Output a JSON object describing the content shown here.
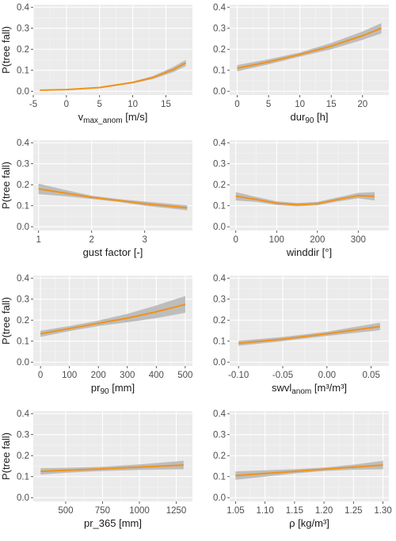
{
  "chart_data": [
    {
      "type": "line",
      "xlabel": "v",
      "xlabel_sub": "max_anom",
      "xlabel_suffix": " [m/s]",
      "ylabel": "P(tree fall)",
      "xlim": [
        -5,
        19
      ],
      "ylim": [
        0,
        0.4
      ],
      "xticks": [
        -5,
        0,
        5,
        10,
        15
      ],
      "xtick_labels": [
        "-5",
        "0",
        "5",
        "10",
        "15"
      ],
      "yticks": [
        0,
        0.1,
        0.2,
        0.3,
        0.4
      ],
      "ytick_labels": [
        "0.0",
        "0.1",
        "0.2",
        "0.3",
        "0.4"
      ],
      "x": [
        -4,
        0,
        5,
        10,
        13,
        16,
        18
      ],
      "y": [
        0.005,
        0.008,
        0.018,
        0.042,
        0.065,
        0.102,
        0.135
      ],
      "lower": [
        0.003,
        0.006,
        0.015,
        0.038,
        0.058,
        0.09,
        0.12
      ],
      "upper": [
        0.007,
        0.01,
        0.021,
        0.046,
        0.072,
        0.114,
        0.15
      ]
    },
    {
      "type": "line",
      "xlabel": "dur",
      "xlabel_sub": "90",
      "xlabel_suffix": " [h]",
      "ylabel": "",
      "xlim": [
        -1.2,
        24.2
      ],
      "ylim": [
        0,
        0.4
      ],
      "xticks": [
        0,
        5,
        10,
        15,
        20
      ],
      "xtick_labels": [
        "0",
        "5",
        "10",
        "15",
        "20"
      ],
      "yticks": [
        0,
        0.1,
        0.2,
        0.3,
        0.4
      ],
      "ytick_labels": [
        "0.0",
        "0.1",
        "0.2",
        "0.3",
        "0.4"
      ],
      "x": [
        0,
        5,
        10,
        15,
        20,
        23
      ],
      "y": [
        0.11,
        0.14,
        0.175,
        0.215,
        0.265,
        0.3
      ],
      "lower": [
        0.095,
        0.128,
        0.165,
        0.2,
        0.245,
        0.275
      ],
      "upper": [
        0.125,
        0.152,
        0.185,
        0.23,
        0.285,
        0.325
      ]
    },
    {
      "type": "line",
      "xlabel": "gust factor [-]",
      "xlabel_sub": "",
      "xlabel_suffix": "",
      "ylabel": "P(tree fall)",
      "xlim": [
        0.9,
        3.9
      ],
      "ylim": [
        0,
        0.4
      ],
      "xticks": [
        1,
        2,
        3
      ],
      "xtick_labels": [
        "1",
        "2",
        "3"
      ],
      "yticks": [
        0,
        0.1,
        0.2,
        0.3,
        0.4
      ],
      "ytick_labels": [
        "0.0",
        "0.1",
        "0.2",
        "0.3",
        "0.4"
      ],
      "x": [
        1,
        1.5,
        2,
        2.5,
        3,
        3.8
      ],
      "y": [
        0.18,
        0.16,
        0.14,
        0.125,
        0.11,
        0.09
      ],
      "lower": [
        0.155,
        0.145,
        0.132,
        0.118,
        0.1,
        0.078
      ],
      "upper": [
        0.205,
        0.175,
        0.148,
        0.132,
        0.12,
        0.102
      ]
    },
    {
      "type": "line",
      "xlabel": "winddir [°]",
      "xlabel_sub": "",
      "xlabel_suffix": "",
      "ylabel": "",
      "xlim": [
        -15,
        375
      ],
      "ylim": [
        0,
        0.4
      ],
      "xticks": [
        0,
        100,
        200,
        300
      ],
      "xtick_labels": [
        "0",
        "100",
        "200",
        "300"
      ],
      "yticks": [
        0,
        0.1,
        0.2,
        0.3,
        0.4
      ],
      "ytick_labels": [
        "0.0",
        "0.1",
        "0.2",
        "0.3",
        "0.4"
      ],
      "x": [
        0,
        50,
        100,
        150,
        200,
        250,
        300,
        340
      ],
      "y": [
        0.145,
        0.13,
        0.112,
        0.105,
        0.11,
        0.13,
        0.148,
        0.145
      ],
      "lower": [
        0.125,
        0.118,
        0.103,
        0.097,
        0.102,
        0.12,
        0.135,
        0.125
      ],
      "upper": [
        0.165,
        0.142,
        0.121,
        0.113,
        0.118,
        0.14,
        0.161,
        0.165
      ]
    },
    {
      "type": "line",
      "xlabel": "pr",
      "xlabel_sub": "90",
      "xlabel_suffix": " [mm]",
      "ylabel": "P(tree fall)",
      "xlim": [
        -25,
        525
      ],
      "ylim": [
        0,
        0.4
      ],
      "xticks": [
        0,
        100,
        200,
        300,
        400,
        500
      ],
      "xtick_labels": [
        "0",
        "100",
        "200",
        "300",
        "400",
        "500"
      ],
      "yticks": [
        0,
        0.1,
        0.2,
        0.3,
        0.4
      ],
      "ytick_labels": [
        "0.0",
        "0.1",
        "0.2",
        "0.3",
        "0.4"
      ],
      "x": [
        0,
        100,
        200,
        300,
        400,
        500
      ],
      "y": [
        0.135,
        0.16,
        0.185,
        0.21,
        0.24,
        0.275
      ],
      "lower": [
        0.12,
        0.148,
        0.172,
        0.19,
        0.21,
        0.235
      ],
      "upper": [
        0.15,
        0.172,
        0.198,
        0.23,
        0.27,
        0.315
      ]
    },
    {
      "type": "line",
      "xlabel": "swvl",
      "xlabel_sub": "anom",
      "xlabel_suffix": " [m³/m³]",
      "ylabel": "",
      "xlim": [
        -0.11,
        0.07
      ],
      "ylim": [
        0,
        0.4
      ],
      "xticks": [
        -0.1,
        -0.05,
        0,
        0.05
      ],
      "xtick_labels": [
        "-0.10",
        "-0.05",
        "0.00",
        "0.05"
      ],
      "yticks": [
        0,
        0.1,
        0.2,
        0.3,
        0.4
      ],
      "ytick_labels": [
        "0.0",
        "0.1",
        "0.2",
        "0.3",
        "0.4"
      ],
      "x": [
        -0.1,
        -0.05,
        0,
        0.06
      ],
      "y": [
        0.09,
        0.11,
        0.135,
        0.17
      ],
      "lower": [
        0.078,
        0.1,
        0.125,
        0.152
      ],
      "upper": [
        0.102,
        0.12,
        0.145,
        0.188
      ]
    },
    {
      "type": "line",
      "xlabel": "pr_365 [mm]",
      "xlabel_sub": "",
      "xlabel_suffix": "",
      "ylabel": "P(tree fall)",
      "xlim": [
        280,
        1360
      ],
      "ylim": [
        0,
        0.4
      ],
      "xticks": [
        500,
        750,
        1000,
        1250
      ],
      "xtick_labels": [
        "500",
        "750",
        "1000",
        "1250"
      ],
      "yticks": [
        0,
        0.1,
        0.2,
        0.3,
        0.4
      ],
      "ytick_labels": [
        "0.0",
        "0.1",
        "0.2",
        "0.3",
        "0.4"
      ],
      "x": [
        330,
        500,
        750,
        1000,
        1300
      ],
      "y": [
        0.125,
        0.13,
        0.137,
        0.145,
        0.155
      ],
      "lower": [
        0.11,
        0.118,
        0.127,
        0.132,
        0.135
      ],
      "upper": [
        0.14,
        0.142,
        0.147,
        0.158,
        0.175
      ]
    },
    {
      "type": "line",
      "xlabel": "ρ [kg/m³]",
      "xlabel_sub": "",
      "xlabel_suffix": "",
      "ylabel": "",
      "xlim": [
        1.04,
        1.31
      ],
      "ylim": [
        0,
        0.4
      ],
      "xticks": [
        1.05,
        1.1,
        1.15,
        1.2,
        1.25,
        1.3
      ],
      "xtick_labels": [
        "1.05",
        "1.10",
        "1.15",
        "1.20",
        "1.25",
        "1.30"
      ],
      "yticks": [
        0,
        0.1,
        0.2,
        0.3,
        0.4
      ],
      "ytick_labels": [
        "0.0",
        "0.1",
        "0.2",
        "0.3",
        "0.4"
      ],
      "x": [
        1.05,
        1.1,
        1.15,
        1.2,
        1.25,
        1.3
      ],
      "y": [
        0.105,
        0.115,
        0.125,
        0.135,
        0.145,
        0.155
      ],
      "lower": [
        0.085,
        0.1,
        0.115,
        0.127,
        0.133,
        0.135
      ],
      "upper": [
        0.125,
        0.13,
        0.135,
        0.143,
        0.157,
        0.175
      ]
    }
  ],
  "colors": {
    "panel_bg": "#ebebeb",
    "grid_major": "#ffffff",
    "grid_minor": "#f5f5f5",
    "line": "#f0921a",
    "ribbon": "#bdbdbd",
    "tick_text": "#4d4d4d",
    "axis_title": "#1a1a1a"
  }
}
